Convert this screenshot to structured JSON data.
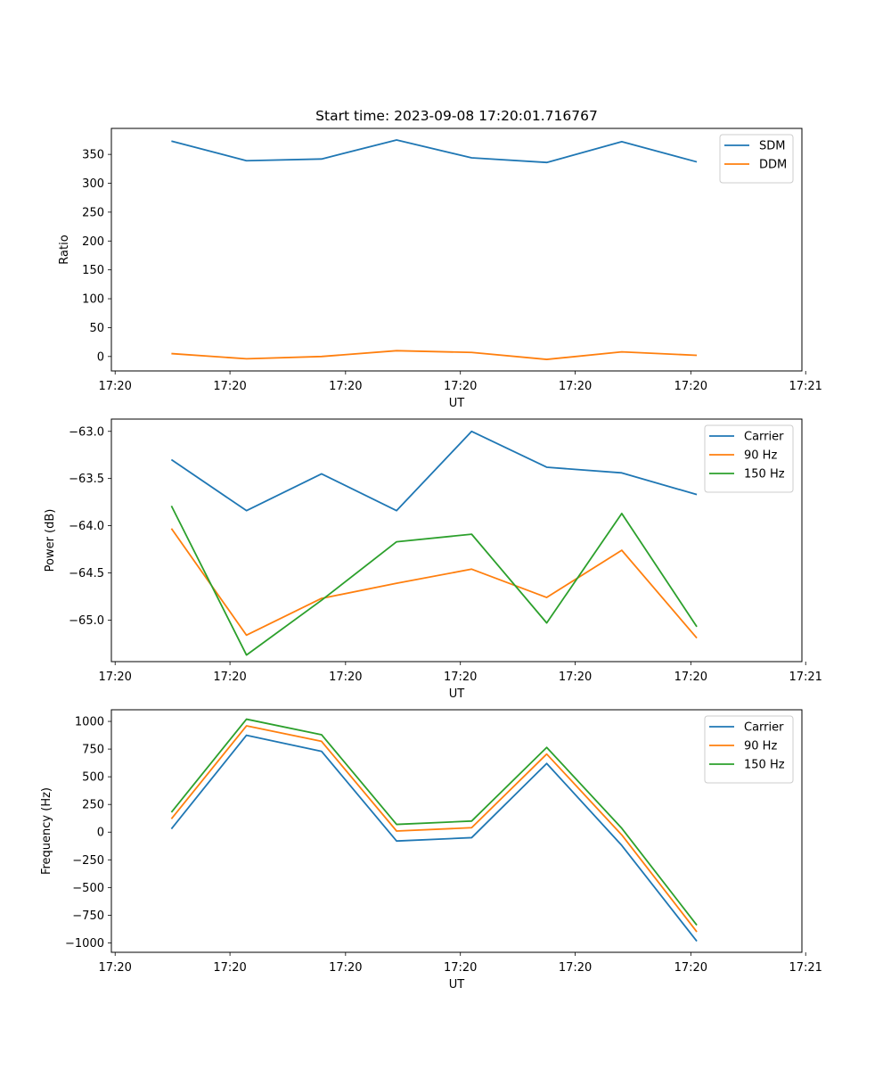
{
  "chart_data": [
    {
      "type": "line",
      "title": "Start time: 2023-09-08 17:20:01.716767",
      "xlabel": "UT",
      "ylabel": "Ratio",
      "xlim": [
        -0.8,
        8.4
      ],
      "ylim": [
        -25,
        395
      ],
      "x": [
        0,
        1,
        2,
        3,
        4,
        5,
        6,
        7
      ],
      "xticks": [
        -0.75,
        0.78,
        2.32,
        3.85,
        5.38,
        6.92,
        8.45
      ],
      "xticklabels": [
        "17:20",
        "17:20",
        "17:20",
        "17:20",
        "17:20",
        "17:20",
        "17:21"
      ],
      "yticks": [
        0,
        50,
        100,
        150,
        200,
        250,
        300,
        350
      ],
      "yticklabels": [
        "0",
        "50",
        "100",
        "150",
        "200",
        "250",
        "300",
        "350"
      ],
      "legend_position": "top-right",
      "series": [
        {
          "name": "SDM",
          "color": "#1f77b4",
          "values": [
            373,
            339,
            342,
            375,
            344,
            336,
            372,
            337
          ]
        },
        {
          "name": "DDM",
          "color": "#ff7f0e",
          "values": [
            5,
            -4,
            0,
            10,
            7,
            -5,
            8,
            2
          ]
        }
      ]
    },
    {
      "type": "line",
      "title": "",
      "xlabel": "UT",
      "ylabel": "Power (dB)",
      "xlim": [
        -0.8,
        8.4
      ],
      "ylim": [
        -65.44,
        -62.87
      ],
      "x": [
        0,
        1,
        2,
        3,
        4,
        5,
        6,
        7
      ],
      "xticks": [
        -0.75,
        0.78,
        2.32,
        3.85,
        5.38,
        6.92,
        8.45
      ],
      "xticklabels": [
        "17:20",
        "17:20",
        "17:20",
        "17:20",
        "17:20",
        "17:20",
        "17:21"
      ],
      "yticks": [
        -65.0,
        -64.5,
        -64.0,
        -63.5,
        -63.0
      ],
      "yticklabels": [
        "−65.0",
        "−64.5",
        "−64.0",
        "−63.5",
        "−63.0"
      ],
      "legend_position": "top-right",
      "series": [
        {
          "name": "Carrier",
          "color": "#1f77b4",
          "values": [
            -63.3,
            -63.84,
            -63.45,
            -63.84,
            -63.0,
            -63.38,
            -63.44,
            -63.67
          ]
        },
        {
          "name": "90 Hz",
          "color": "#ff7f0e",
          "values": [
            -64.03,
            -65.16,
            -64.77,
            -64.61,
            -64.46,
            -64.76,
            -64.26,
            -65.19
          ]
        },
        {
          "name": "150 Hz",
          "color": "#2ca02c",
          "values": [
            -63.79,
            -65.37,
            -64.79,
            -64.17,
            -64.09,
            -65.03,
            -63.87,
            -65.07
          ]
        }
      ]
    },
    {
      "type": "line",
      "title": "",
      "xlabel": "UT",
      "ylabel": "Frequency (Hz)",
      "xlim": [
        -0.8,
        8.4
      ],
      "ylim": [
        -1085,
        1105
      ],
      "x": [
        0,
        1,
        2,
        3,
        4,
        5,
        6,
        7
      ],
      "xticks": [
        -0.75,
        0.78,
        2.32,
        3.85,
        5.38,
        6.92,
        8.45
      ],
      "xticklabels": [
        "17:20",
        "17:20",
        "17:20",
        "17:20",
        "17:20",
        "17:20",
        "17:21"
      ],
      "yticks": [
        -1000,
        -750,
        -500,
        -250,
        0,
        250,
        500,
        750,
        1000
      ],
      "yticklabels": [
        "−1000",
        "−750",
        "−500",
        "−250",
        "0",
        "250",
        "500",
        "750",
        "1000"
      ],
      "legend_position": "top-right",
      "series": [
        {
          "name": "Carrier",
          "color": "#1f77b4",
          "values": [
            30,
            875,
            730,
            -80,
            -50,
            620,
            -120,
            -985
          ]
        },
        {
          "name": "90 Hz",
          "color": "#ff7f0e",
          "values": [
            120,
            960,
            820,
            10,
            40,
            705,
            -25,
            -900
          ]
        },
        {
          "name": "150 Hz",
          "color": "#2ca02c",
          "values": [
            180,
            1020,
            880,
            70,
            100,
            765,
            35,
            -840
          ]
        }
      ]
    }
  ]
}
